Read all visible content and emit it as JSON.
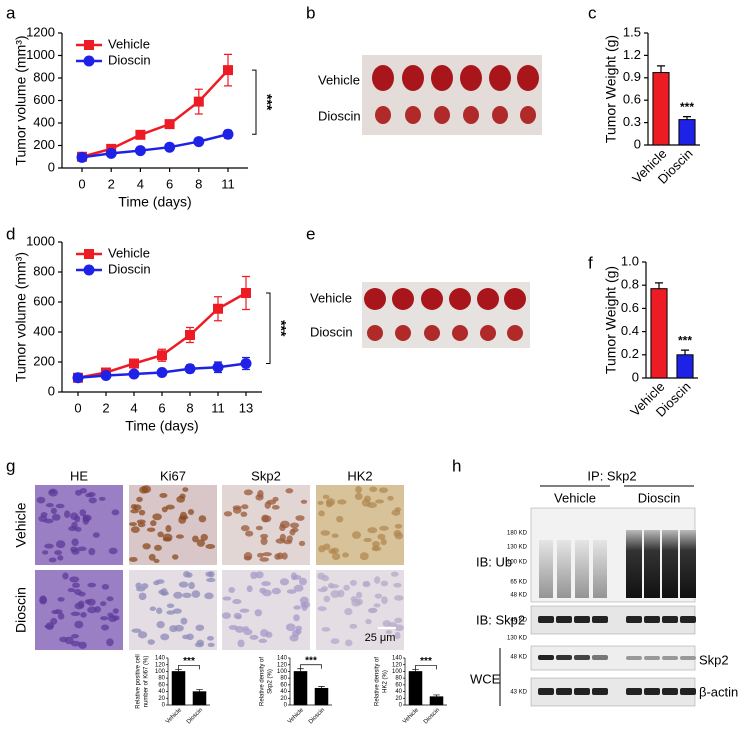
{
  "chart_data": [
    {
      "type": "line",
      "x_label": "Time (days)",
      "y_label": "Tumor volume (mm³)",
      "categories": [
        "0",
        "2",
        "4",
        "6",
        "8",
        "11"
      ],
      "series": [
        {
          "name": "Vehicle",
          "color": "#ed1c24",
          "marker": "square",
          "values": [
            100,
            170,
            295,
            390,
            590,
            870
          ],
          "errors": [
            10,
            15,
            20,
            35,
            110,
            140
          ]
        },
        {
          "name": "Dioscin",
          "color": "#1e22e6",
          "marker": "circle",
          "values": [
            95,
            130,
            155,
            185,
            235,
            300
          ],
          "errors": [
            10,
            10,
            10,
            15,
            25,
            35
          ]
        }
      ],
      "ylim": [
        0,
        1200
      ],
      "yticks": [
        0,
        200,
        400,
        600,
        800,
        1000,
        1200
      ],
      "legend": "upper left",
      "annotation": "***"
    },
    {
      "type": "bar",
      "y_label": "Tumor Weight (g)",
      "categories": [
        "Vehicle",
        "Dioscin"
      ],
      "values": [
        0.97,
        0.34
      ],
      "errors": [
        0.09,
        0.04
      ],
      "colors": [
        "#ed1c24",
        "#1e22e6"
      ],
      "ylim": [
        0,
        1.5
      ],
      "yticks": [
        0,
        0.3,
        0.6,
        0.9,
        1.2,
        1.5
      ],
      "annotation": "***"
    },
    {
      "type": "line",
      "x_label": "Time (days)",
      "y_label": "Tumor volume (mm³)",
      "categories": [
        "0",
        "2",
        "4",
        "6",
        "8",
        "11",
        "13"
      ],
      "series": [
        {
          "name": "Vehicle",
          "color": "#ed1c24",
          "marker": "square",
          "values": [
            95,
            130,
            190,
            245,
            380,
            555,
            660
          ],
          "errors": [
            10,
            15,
            15,
            40,
            50,
            80,
            110
          ]
        },
        {
          "name": "Dioscin",
          "color": "#1e22e6",
          "marker": "circle",
          "values": [
            95,
            110,
            120,
            130,
            155,
            165,
            190
          ],
          "errors": [
            10,
            10,
            10,
            15,
            25,
            35,
            40
          ]
        }
      ],
      "ylim": [
        0,
        1000
      ],
      "yticks": [
        0,
        200,
        400,
        600,
        800,
        1000
      ],
      "legend": "upper left",
      "annotation": "***"
    },
    {
      "type": "bar",
      "y_label": "Tumor Weight (g)",
      "categories": [
        "Vehicle",
        "Dioscin"
      ],
      "values": [
        0.77,
        0.2
      ],
      "errors": [
        0.05,
        0.04
      ],
      "colors": [
        "#ed1c24",
        "#1e22e6"
      ],
      "ylim": [
        0,
        1
      ],
      "yticks": [
        {
          "value": 0,
          "label": "0"
        },
        0.2,
        0.4,
        0.6,
        0.8,
        {
          "value": 1,
          "label": "1.0"
        }
      ],
      "annotation": "***"
    },
    {
      "type": "bar",
      "y_label": [
        "Relative positive cell",
        "number of Ki67 (%)"
      ],
      "categories": [
        "Vehicle",
        "Dioscin"
      ],
      "values": [
        100,
        40
      ],
      "errors": [
        6,
        6
      ],
      "colors": [
        "#000000",
        "#000000"
      ],
      "ylim": [
        0,
        140
      ],
      "yticks": [
        0,
        20,
        40,
        60,
        80,
        100,
        120,
        140
      ],
      "annotation": "***"
    },
    {
      "type": "bar",
      "y_label": [
        "Relative density of",
        "Skp2 (%)"
      ],
      "categories": [
        "Vehicle",
        "Dioscin"
      ],
      "values": [
        100,
        50
      ],
      "errors": [
        8,
        5
      ],
      "colors": [
        "#000000",
        "#000000"
      ],
      "ylim": [
        0,
        140
      ],
      "yticks": [
        0,
        20,
        40,
        60,
        80,
        100,
        120,
        140
      ],
      "annotation": "***"
    },
    {
      "type": "bar",
      "y_label": [
        "Relative density of",
        "HK2 (%)"
      ],
      "categories": [
        "Vehicle",
        "Dioscin"
      ],
      "values": [
        100,
        25
      ],
      "errors": [
        6,
        5
      ],
      "colors": [
        "#000000",
        "#000000"
      ],
      "ylim": [
        0,
        140
      ],
      "yticks": [
        0,
        20,
        40,
        60,
        80,
        100,
        120,
        140
      ],
      "annotation": "***"
    }
  ],
  "panel_labels": [
    "a",
    "b",
    "c",
    "d",
    "e",
    "f",
    "g",
    "h"
  ],
  "photo_b": {
    "rows": [
      "Vehicle",
      "Dioscin"
    ]
  },
  "photo_e": {
    "rows": [
      "Vehicle",
      "Dioscin"
    ]
  },
  "histology": {
    "columns": [
      "HE",
      "Ki67",
      "Skp2",
      "HK2"
    ],
    "rows": [
      "Vehicle",
      "Dioscin"
    ],
    "scale": "25 μm"
  },
  "blot": {
    "title": "IP: Skp2",
    "groups": [
      "Vehicle",
      "Dioscin"
    ],
    "rows": [
      "IB: Ub",
      "IB: Skp2",
      "WCE"
    ],
    "right_labels": [
      "Skp2",
      "β-actin"
    ],
    "markers": [
      "180 KD",
      "130 KD",
      "100 KD",
      "65 KD",
      "48 KD",
      "48 KD",
      "130 KD",
      "48 KD",
      "43 KD"
    ]
  }
}
